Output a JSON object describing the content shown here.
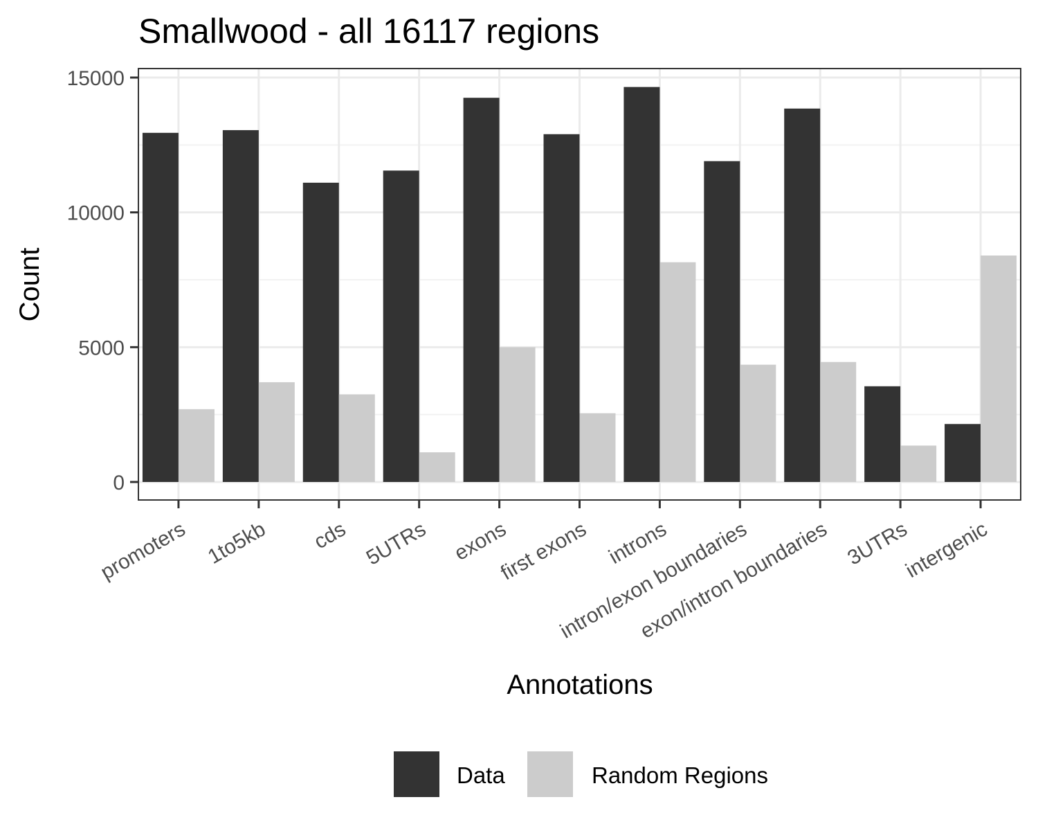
{
  "chart_data": {
    "type": "bar",
    "title": "Smallwood - all 16117 regions",
    "xlabel": "Annotations",
    "ylabel": "Count",
    "ylim": [
      0,
      15000
    ],
    "yticks": [
      "0",
      "5000",
      "10000",
      "15000"
    ],
    "categories": [
      "promoters",
      "1to5kb",
      "cds",
      "5UTRs",
      "exons",
      "first exons",
      "introns",
      "intron/exon boundaries",
      "exon/intron boundaries",
      "3UTRs",
      "intergenic"
    ],
    "series": [
      {
        "name": "Data",
        "color": "#333333",
        "values": [
          12950,
          13050,
          11100,
          11550,
          14250,
          12900,
          14650,
          11900,
          13850,
          3550,
          2150
        ]
      },
      {
        "name": "Random Regions",
        "color": "#cccccc",
        "values": [
          2700,
          3700,
          3250,
          1100,
          5000,
          2550,
          8150,
          4350,
          4450,
          1350,
          8400
        ]
      }
    ],
    "grid": true,
    "legend_position": "bottom"
  }
}
